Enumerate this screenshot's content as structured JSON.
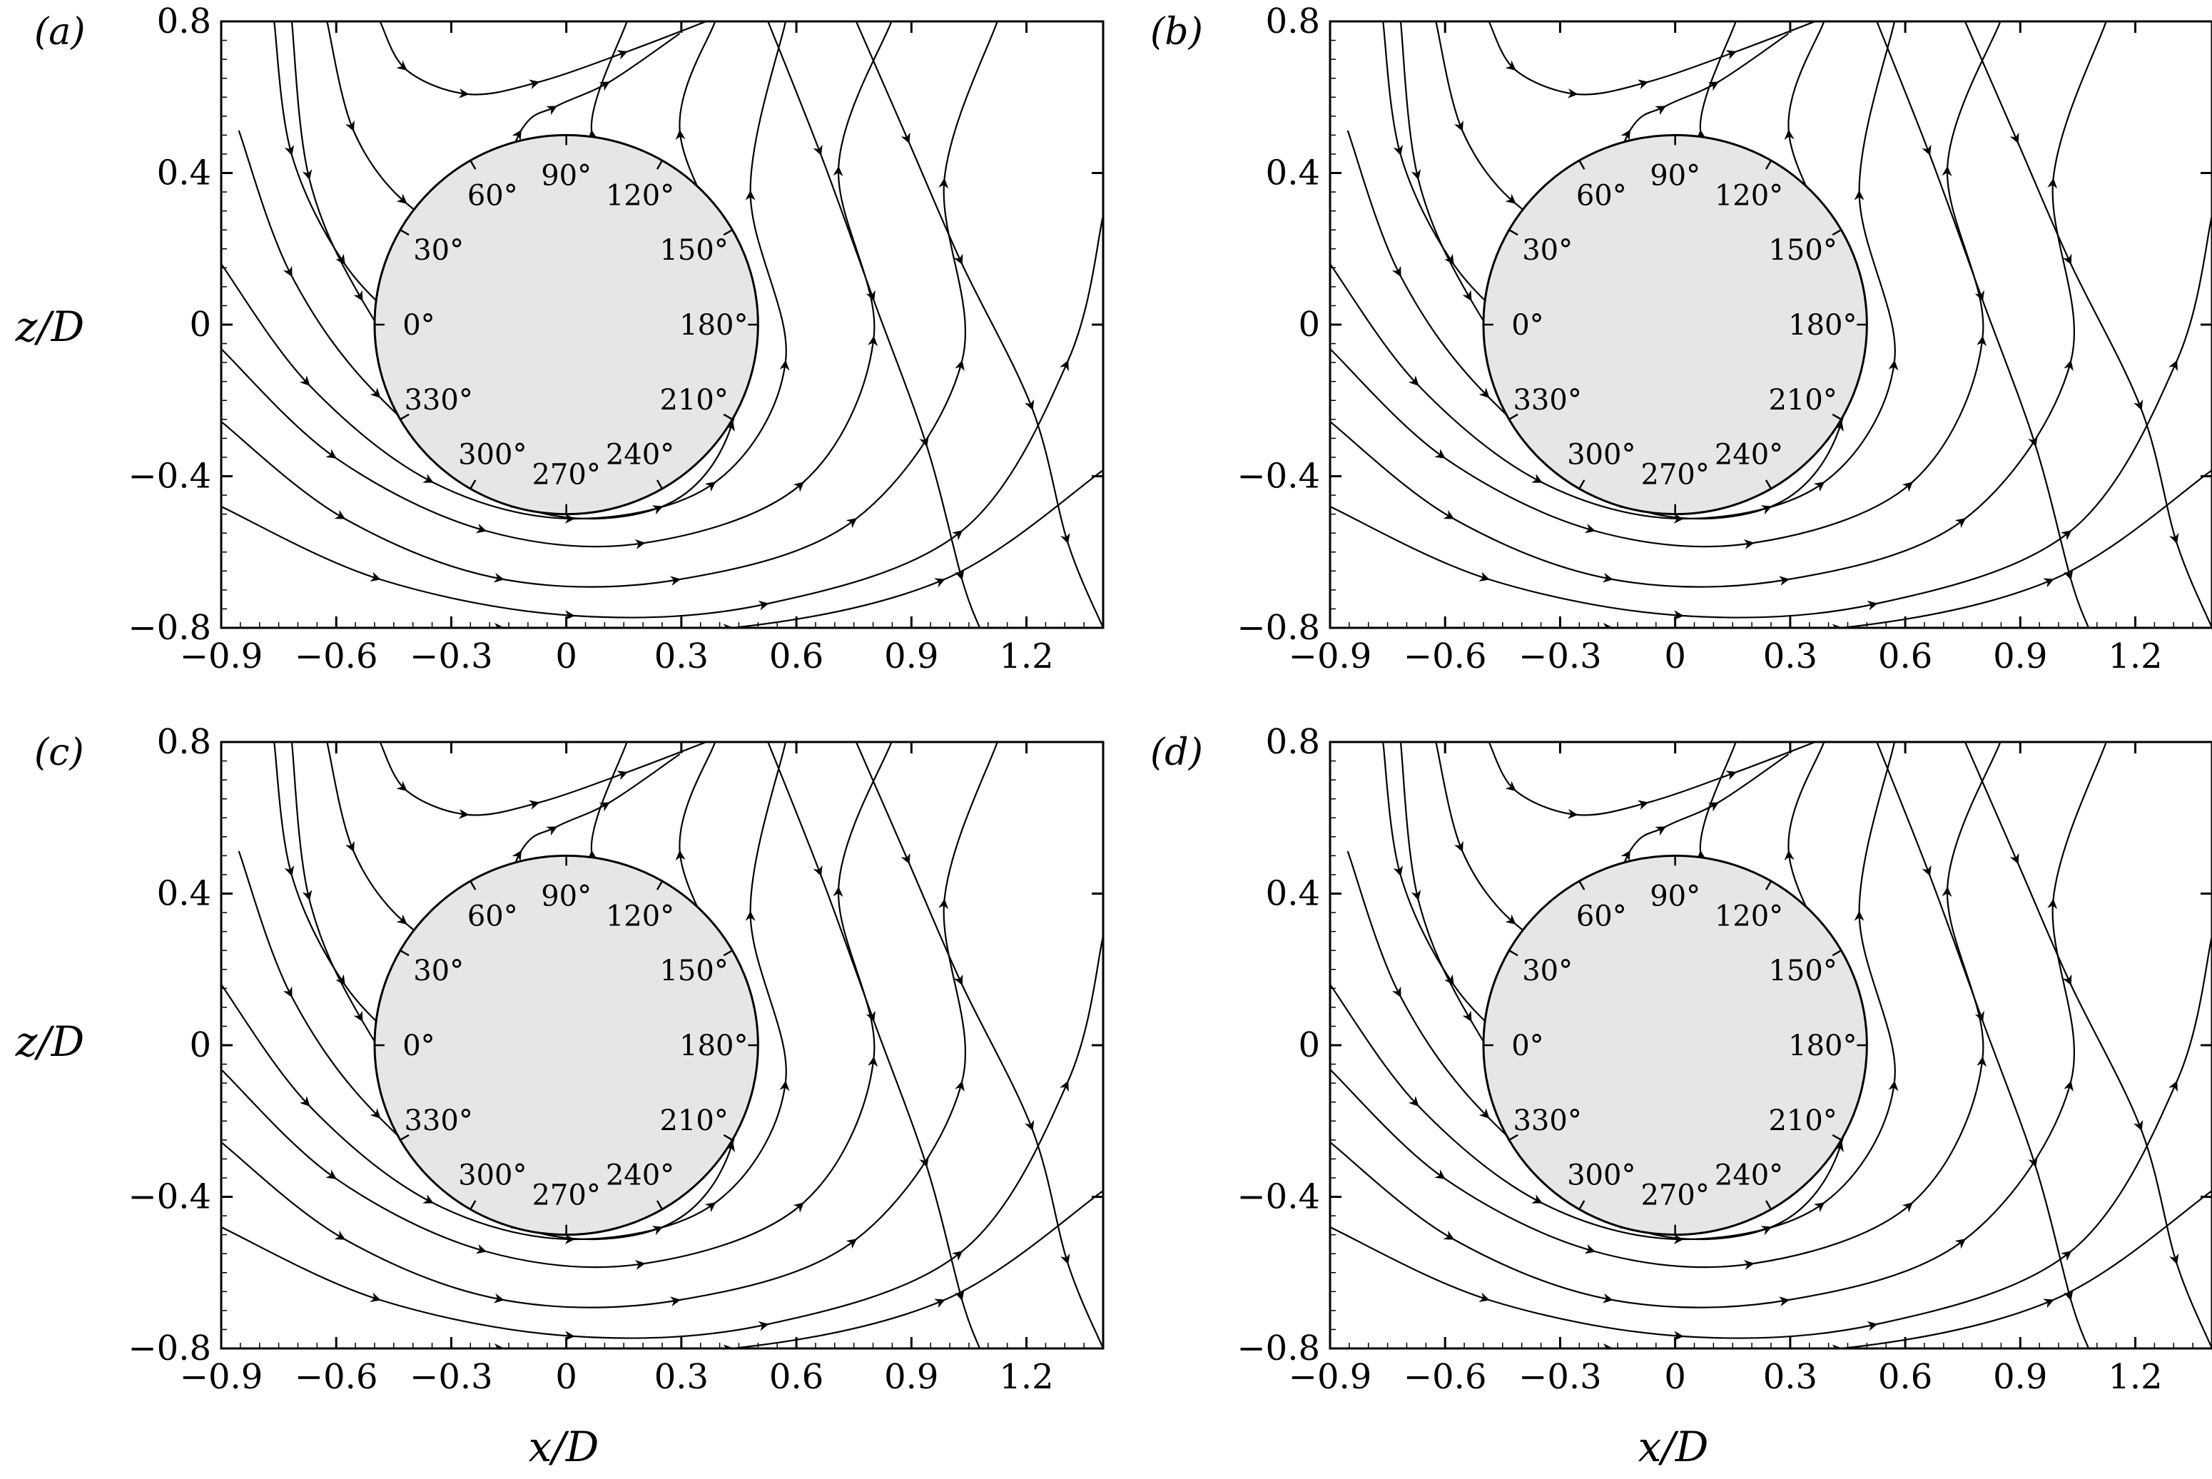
{
  "figure": {
    "panels": [
      {
        "tag": "(a)"
      },
      {
        "tag": "(b)"
      },
      {
        "tag": "(c)"
      },
      {
        "tag": "(d)"
      }
    ],
    "x_axis": {
      "title": "x/D",
      "ticks": [
        -0.9,
        -0.6,
        -0.3,
        0,
        0.3,
        0.6,
        0.9,
        1.2
      ],
      "tick_labels": [
        "−0.9",
        "−0.6",
        "−0.3",
        "0",
        "0.3",
        "0.6",
        "0.9",
        "1.2"
      ],
      "range": [
        -0.9,
        1.4
      ]
    },
    "z_axis": {
      "title": "z/D",
      "ticks": [
        0.8,
        0.4,
        0,
        -0.4,
        -0.8
      ],
      "tick_labels": [
        "0.8",
        "0.4",
        "0",
        "−0.4",
        "−0.8"
      ],
      "range": [
        -0.8,
        0.8
      ]
    },
    "cylinder": {
      "diameter_over_D": 1.0,
      "fill_color": "#e6e6e6",
      "angle_labels": [
        "0°",
        "30°",
        "60°",
        "90°",
        "120°",
        "150°",
        "180°",
        "210°",
        "240°",
        "270°",
        "300°",
        "330°"
      ]
    },
    "colors": {
      "line": "#000000",
      "background": "#ffffff"
    }
  }
}
